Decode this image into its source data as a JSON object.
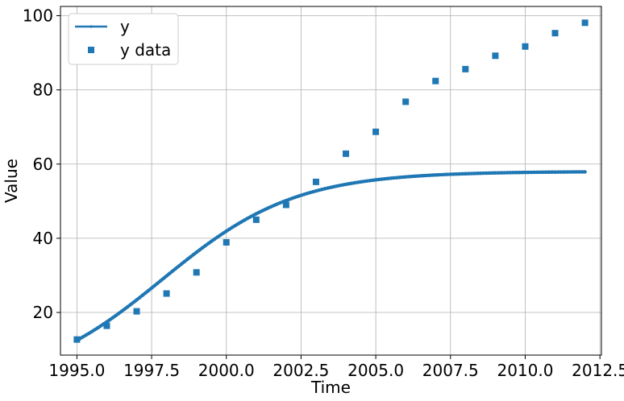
{
  "chart_data": {
    "type": "line",
    "xlabel": "Time",
    "ylabel": "Value",
    "xlim": [
      1994.45,
      2012.55
    ],
    "ylim": [
      8.5,
      102.5
    ],
    "xticks": [
      1995.0,
      1997.5,
      2000.0,
      2002.5,
      2005.0,
      2007.5,
      2010.0,
      2012.5
    ],
    "xtick_labels": [
      "1995.0",
      "1997.5",
      "2000.0",
      "2002.5",
      "2005.0",
      "2007.5",
      "2010.0",
      "2012.5"
    ],
    "yticks": [
      20,
      40,
      60,
      80,
      100
    ],
    "ytick_labels": [
      "20",
      "40",
      "60",
      "80",
      "100"
    ],
    "grid": true,
    "legend_position": "top-left",
    "color": "#1f77b4",
    "series": [
      {
        "name": "y",
        "kind": "line-with-markers",
        "model": "logistic",
        "K": 58,
        "r": 0.45,
        "y0": 12.5,
        "t0": 1995,
        "x_range": [
          1995,
          2012
        ]
      },
      {
        "name": "y data",
        "kind": "scatter-square",
        "x": [
          1995,
          1996,
          1997,
          1998,
          1999,
          2000,
          2001,
          2002,
          2003,
          2004,
          2005,
          2006,
          2007,
          2008,
          2009,
          2010,
          2011,
          2012
        ],
        "values": [
          12.7,
          16.4,
          20.3,
          25.1,
          30.8,
          38.9,
          45.0,
          49.0,
          55.2,
          62.8,
          68.7,
          76.8,
          82.4,
          85.6,
          89.2,
          91.7,
          95.3,
          98.1
        ]
      }
    ]
  }
}
